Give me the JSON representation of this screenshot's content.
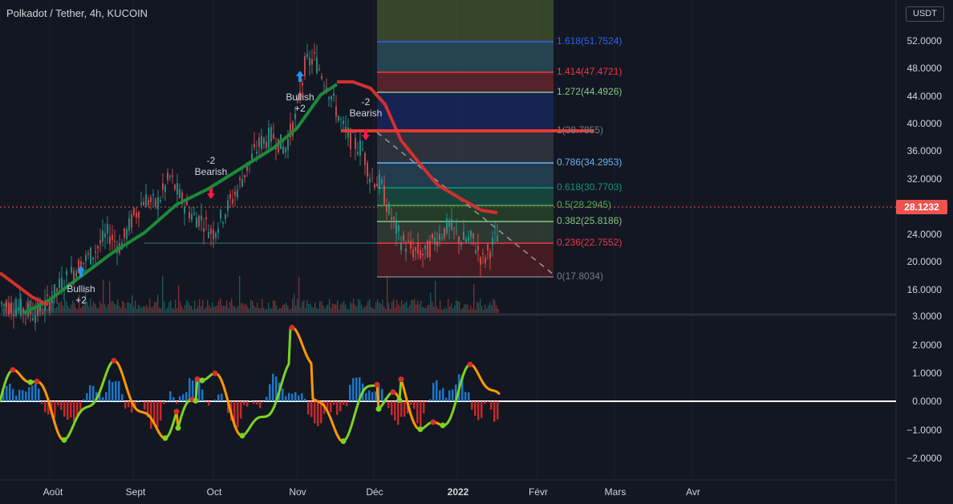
{
  "header": {
    "title": "Polkadot / Tether, 4h, KUCOIN",
    "currency": "USDT"
  },
  "price_axis": {
    "labels": [
      "52.0000",
      "48.0000",
      "44.0000",
      "40.0000",
      "36.0000",
      "32.0000",
      "24.0000",
      "20.0000",
      "16.0000"
    ],
    "current_price": "28.1232"
  },
  "osc_axis": {
    "labels": [
      "3.0000",
      "2.0000",
      "1.0000",
      "0.0000",
      "−1.0000",
      "−2.0000"
    ]
  },
  "time_axis": {
    "labels": [
      "Août",
      "Sept",
      "Oct",
      "Nov",
      "Déc",
      "2022",
      "Févr",
      "Mars",
      "Avr"
    ]
  },
  "fib_levels": [
    {
      "label": "1.618(51.7524)",
      "color": "#2962ff",
      "price": 51.7524
    },
    {
      "label": "1.414(47.4721)",
      "color": "#f23645",
      "price": 47.4721
    },
    {
      "label": "1.272(44.4926)",
      "color": "#81c784",
      "price": 44.4926
    },
    {
      "label": "1(38.7855)",
      "color": "#787b86",
      "price": 38.7855
    },
    {
      "label": "0.786(34.2953)",
      "color": "#64b5f6",
      "price": 34.2953
    },
    {
      "label": "0.618(30.7703)",
      "color": "#089981",
      "price": 30.7703
    },
    {
      "label": "0.5(28.2945)",
      "color": "#4caf50",
      "price": 28.2945
    },
    {
      "label": "0.382(25.8186)",
      "color": "#81c784",
      "price": 25.8186
    },
    {
      "label": "0.236(22.7552)",
      "color": "#f23645",
      "price": 22.7552
    },
    {
      "label": "0(17.8034)",
      "color": "#787b86",
      "price": 17.8034
    }
  ],
  "annotations": {
    "bullish": "Bullish",
    "bearish": "Bearish",
    "plus2": "+2",
    "minus2": "-2"
  },
  "colors": {
    "background": "#131722",
    "ma_green": "#1b8a3a",
    "ma_red": "#d32f2f",
    "osc_green": "#7cd321",
    "osc_red": "#e52b2b",
    "hist_blue": "#1e88e5",
    "accent_price": "#ef5350"
  }
}
